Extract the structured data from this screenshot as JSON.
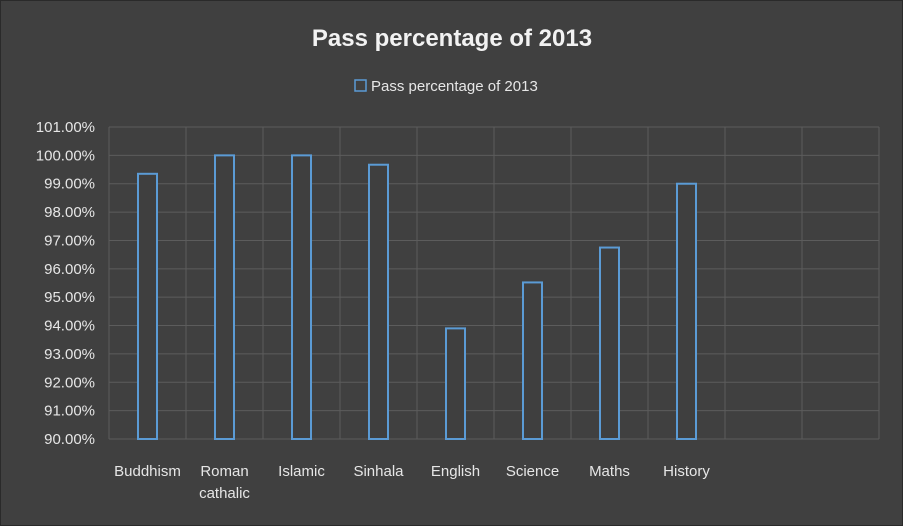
{
  "chart_data": {
    "type": "bar",
    "title": "Pass percentage of 2013",
    "legend": "top",
    "grid": true,
    "categories": [
      "Buddhism",
      "Roman cathalic",
      "Islamic",
      "Sinhala",
      "English",
      "Science",
      "Maths",
      "History",
      "",
      ""
    ],
    "series": [
      {
        "name": "Pass percentage of 2013",
        "values": [
          99.35,
          100.0,
          100.0,
          99.67,
          93.9,
          95.52,
          96.75,
          99.0,
          null,
          null
        ]
      }
    ],
    "ylim": [
      90,
      101
    ],
    "yticks": [
      "101.00%",
      "100.00%",
      "99.00%",
      "98.00%",
      "97.00%",
      "96.00%",
      "95.00%",
      "94.00%",
      "93.00%",
      "92.00%",
      "91.00%",
      "90.00%"
    ],
    "colors": {
      "bar_outline": "#5b9bd5",
      "background": "#404040",
      "gridline": "#5c5c5c"
    }
  }
}
